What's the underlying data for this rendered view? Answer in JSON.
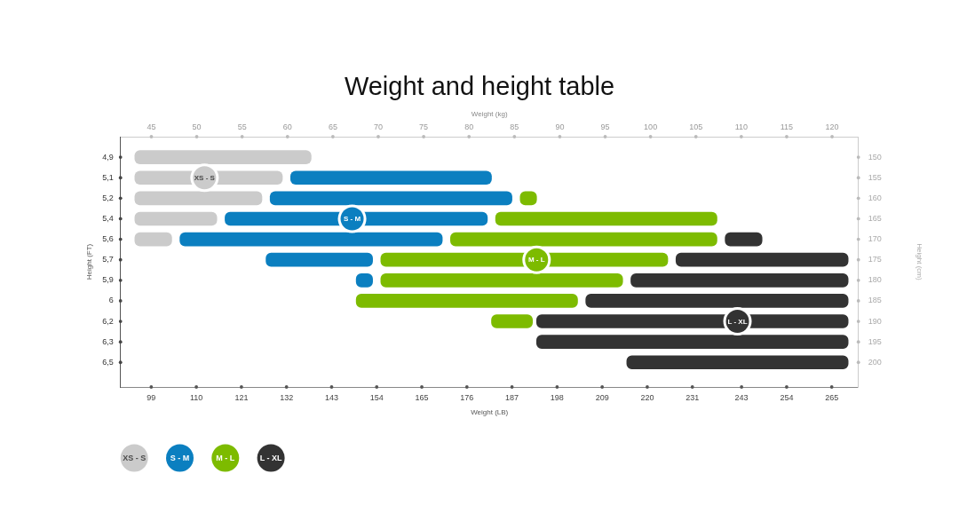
{
  "chart_data": {
    "type": "bar",
    "orientation": "horizontal",
    "title": "Weight and height table",
    "xlabel": "Weight (LB)",
    "x2label": "Weight (kg)",
    "ylabel": "Height (FT)",
    "y2label": "Height (cm)",
    "categories": [
      "4,9",
      "5,1",
      "5,2",
      "5,4",
      "5,6",
      "5,7",
      "5,9",
      "6",
      "6,2",
      "6,3",
      "6,5"
    ],
    "xlim": [
      91.5,
      271.5
    ],
    "xticks": [
      99,
      110,
      121,
      132,
      143,
      154,
      165,
      176,
      187,
      198,
      209,
      220,
      231,
      243,
      254,
      265
    ],
    "x2lim": [
      41.6,
      122.9
    ],
    "x2ticks": [
      45,
      50,
      55,
      60,
      65,
      70,
      75,
      80,
      85,
      90,
      95,
      100,
      105,
      110,
      115,
      120
    ],
    "y2lim": [
      206,
      145
    ],
    "y2ticks": [
      150,
      155,
      160,
      165,
      170,
      175,
      180,
      185,
      190,
      195,
      200
    ],
    "series": [
      {
        "name": "XS - S",
        "color": "#cbcbcb",
        "base": [
          95,
          95,
          95,
          95,
          95,
          null,
          null,
          null,
          null,
          null,
          null
        ],
        "values": [
          43,
          36,
          31,
          20,
          9,
          null,
          null,
          null,
          null,
          null,
          null
        ]
      },
      {
        "name": "S - M",
        "color": "#0b7fc0",
        "base": [
          null,
          133,
          128,
          117,
          106,
          127,
          149,
          null,
          null,
          null,
          null
        ],
        "values": [
          null,
          49,
          59,
          64,
          64,
          26,
          4,
          null,
          null,
          null,
          null
        ]
      },
      {
        "name": "M - L",
        "color": "#7dbb00",
        "base": [
          null,
          null,
          189,
          183,
          172,
          155,
          155,
          149,
          182,
          null,
          null
        ],
        "values": [
          null,
          null,
          4,
          54,
          65,
          70,
          59,
          54,
          10,
          null,
          null
        ]
      },
      {
        "name": "L - XL",
        "color": "#333333",
        "base": [
          null,
          null,
          null,
          null,
          239,
          227,
          216,
          205,
          193,
          193,
          215
        ],
        "values": [
          null,
          null,
          null,
          null,
          9,
          42,
          53,
          64,
          76,
          76,
          54
        ]
      }
    ],
    "annotations": [
      {
        "text": "XS - S",
        "x": 112,
        "y": "5,1"
      },
      {
        "text": "S - M",
        "x": 148,
        "y": "5,4"
      },
      {
        "text": "M - L",
        "x": 193,
        "y": "5,7"
      },
      {
        "text": "L - XL",
        "x": 242,
        "y": "6,2"
      }
    ],
    "legend": "bottom left"
  }
}
